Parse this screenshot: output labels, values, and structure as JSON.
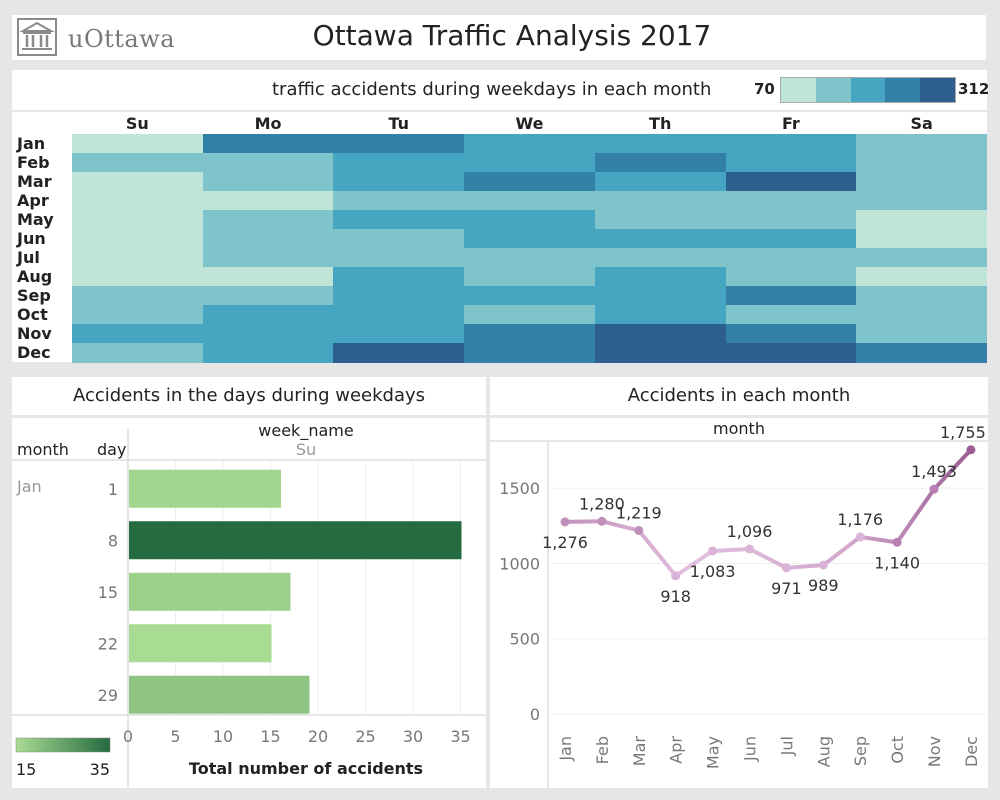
{
  "header": {
    "logo_text": "uOttawa",
    "title": "Ottawa Traffic Analysis 2017"
  },
  "colors": {
    "heat_ramp": [
      "#bfe5d9",
      "#80c4cb",
      "#46a5c1",
      "#3380a6",
      "#2c5f8d"
    ],
    "bar_low": "#a9dc93",
    "bar_high": "#246b3f",
    "line_color": "#c99ac4",
    "line_marker": "#a86fa1"
  },
  "chart_data": [
    {
      "type": "heatmap",
      "title": "traffic accidents during weekdays in each month",
      "x_categories": [
        "Su",
        "Mo",
        "Tu",
        "We",
        "Th",
        "Fr",
        "Sa"
      ],
      "y_categories": [
        "Jan",
        "Feb",
        "Mar",
        "Apr",
        "May",
        "Jun",
        "Jul",
        "Aug",
        "Sep",
        "Oct",
        "Nov",
        "Dec"
      ],
      "color_range": [
        70,
        312
      ],
      "legend_min_label": "70",
      "legend_max_label": "312",
      "levels": [
        [
          0,
          3,
          3,
          2,
          2,
          2,
          1
        ],
        [
          1,
          1,
          2,
          2,
          3,
          2,
          1
        ],
        [
          0,
          1,
          2,
          3,
          2,
          4,
          1
        ],
        [
          0,
          0,
          1,
          1,
          1,
          1,
          1
        ],
        [
          0,
          1,
          2,
          2,
          1,
          1,
          0
        ],
        [
          0,
          1,
          1,
          2,
          2,
          2,
          0
        ],
        [
          0,
          1,
          1,
          1,
          1,
          1,
          1
        ],
        [
          0,
          0,
          2,
          1,
          2,
          1,
          0
        ],
        [
          1,
          1,
          2,
          2,
          2,
          3,
          1
        ],
        [
          1,
          2,
          2,
          1,
          2,
          1,
          1
        ],
        [
          2,
          2,
          2,
          3,
          4,
          3,
          1
        ],
        [
          1,
          2,
          4,
          3,
          4,
          4,
          3
        ]
      ]
    },
    {
      "type": "bar",
      "title": "Accidents in the days during weekdays",
      "column_header": "week_name",
      "column_value": "Su",
      "row_header_month": "month",
      "row_header_day": "day",
      "month_value": "Jan",
      "categories": [
        "1",
        "8",
        "15",
        "22",
        "29"
      ],
      "values": [
        16,
        35,
        17,
        15,
        19
      ],
      "xlabel": "Total number of accidents",
      "xlim": [
        0,
        36
      ],
      "xticks": [
        "0",
        "5",
        "10",
        "15",
        "20",
        "25",
        "30",
        "35"
      ],
      "legend_min_label": "15",
      "legend_max_label": "35"
    },
    {
      "type": "line",
      "title": "Accidents in each month",
      "column_header": "month",
      "x": [
        "Jan",
        "Feb",
        "Mar",
        "Apr",
        "May",
        "Jun",
        "Jul",
        "Aug",
        "Sep",
        "Oct",
        "Nov",
        "Dec"
      ],
      "values": [
        1276,
        1280,
        1219,
        918,
        1083,
        1096,
        971,
        989,
        1176,
        1140,
        1493,
        1755
      ],
      "value_labels": [
        "1,276",
        "1,280",
        "1,219",
        "918",
        "1,083",
        "1,096",
        "971",
        "989",
        "1,176",
        "1,140",
        "1,493",
        "1,755"
      ],
      "ylim": [
        0,
        1800
      ],
      "yticks": [
        "0",
        "500",
        "1000",
        "1500"
      ]
    }
  ]
}
